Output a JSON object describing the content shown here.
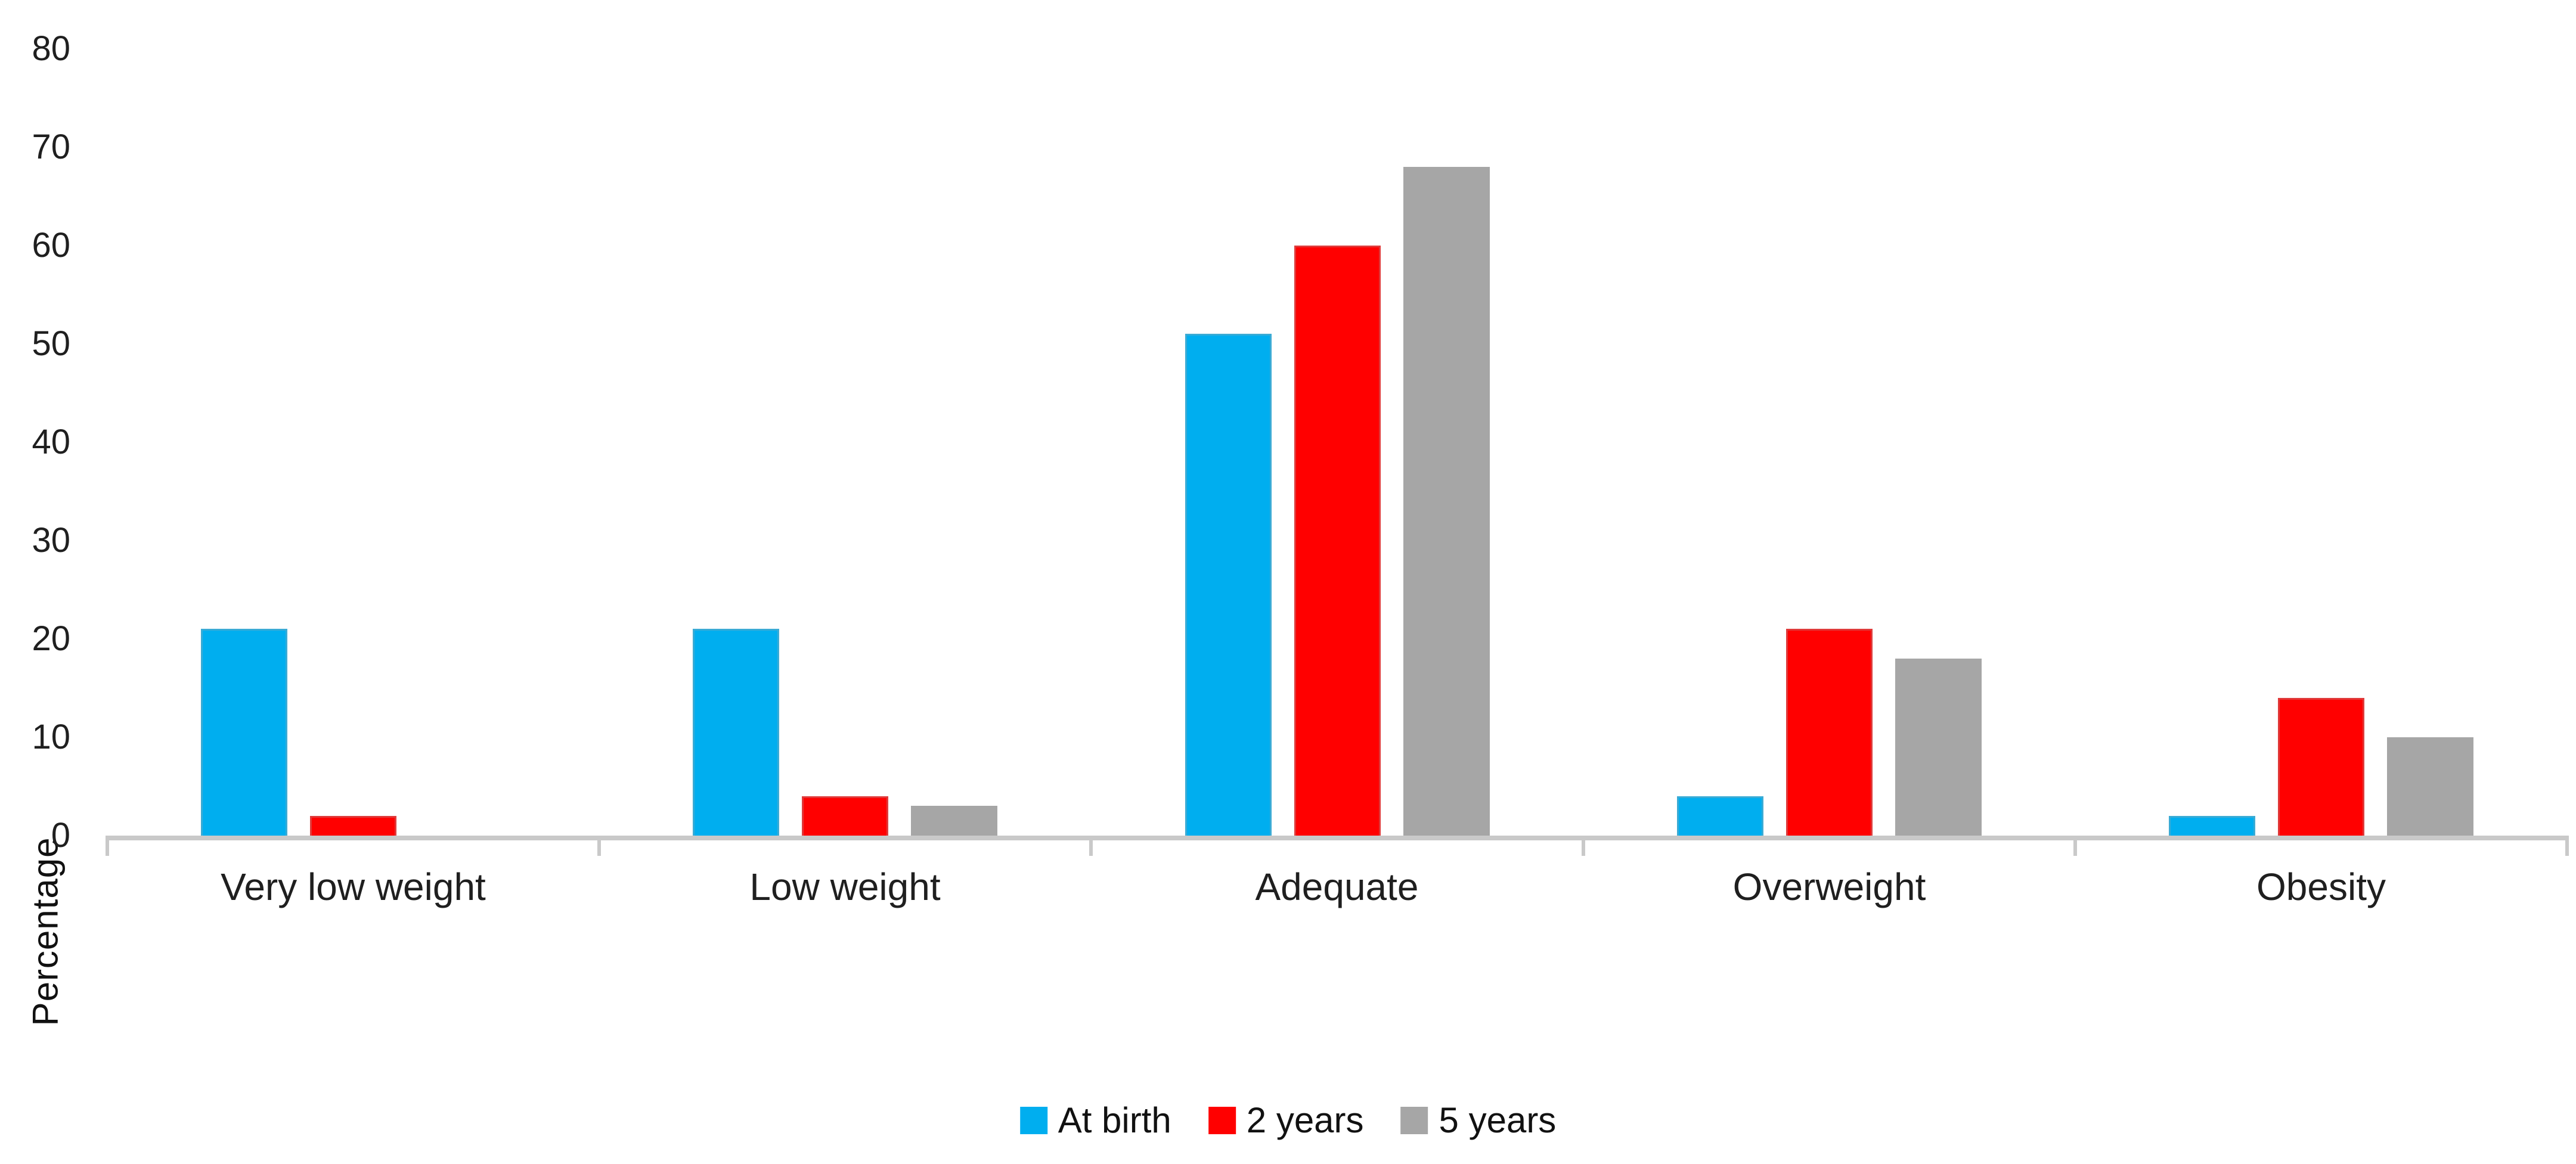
{
  "chart_data": {
    "type": "bar",
    "title": "",
    "xlabel": "",
    "ylabel": "Percentage",
    "categories": [
      "Very low weight",
      "Low weight",
      "Adequate",
      "Overweight",
      "Obesity"
    ],
    "series": [
      {
        "name": "At birth",
        "color": "#00AEEF",
        "values": [
          21,
          21,
          51,
          4,
          2
        ]
      },
      {
        "name": "2 years",
        "color": "#FF0000",
        "values": [
          2,
          4,
          60,
          21,
          14
        ]
      },
      {
        "name": "5 years",
        "color": "#A6A6A6",
        "values": [
          0,
          3,
          68,
          18,
          10
        ]
      }
    ],
    "ylim": [
      0,
      80
    ],
    "ytick_step": 10,
    "ytick_labels": [
      "0",
      "10",
      "20",
      "30",
      "40",
      "50",
      "60",
      "70",
      "80"
    ],
    "grid": false,
    "legend_position": "bottom-center",
    "axis_color": "#C9C9C9",
    "text_color": "#1F1F1F",
    "background_color": "#FFFFFF"
  }
}
